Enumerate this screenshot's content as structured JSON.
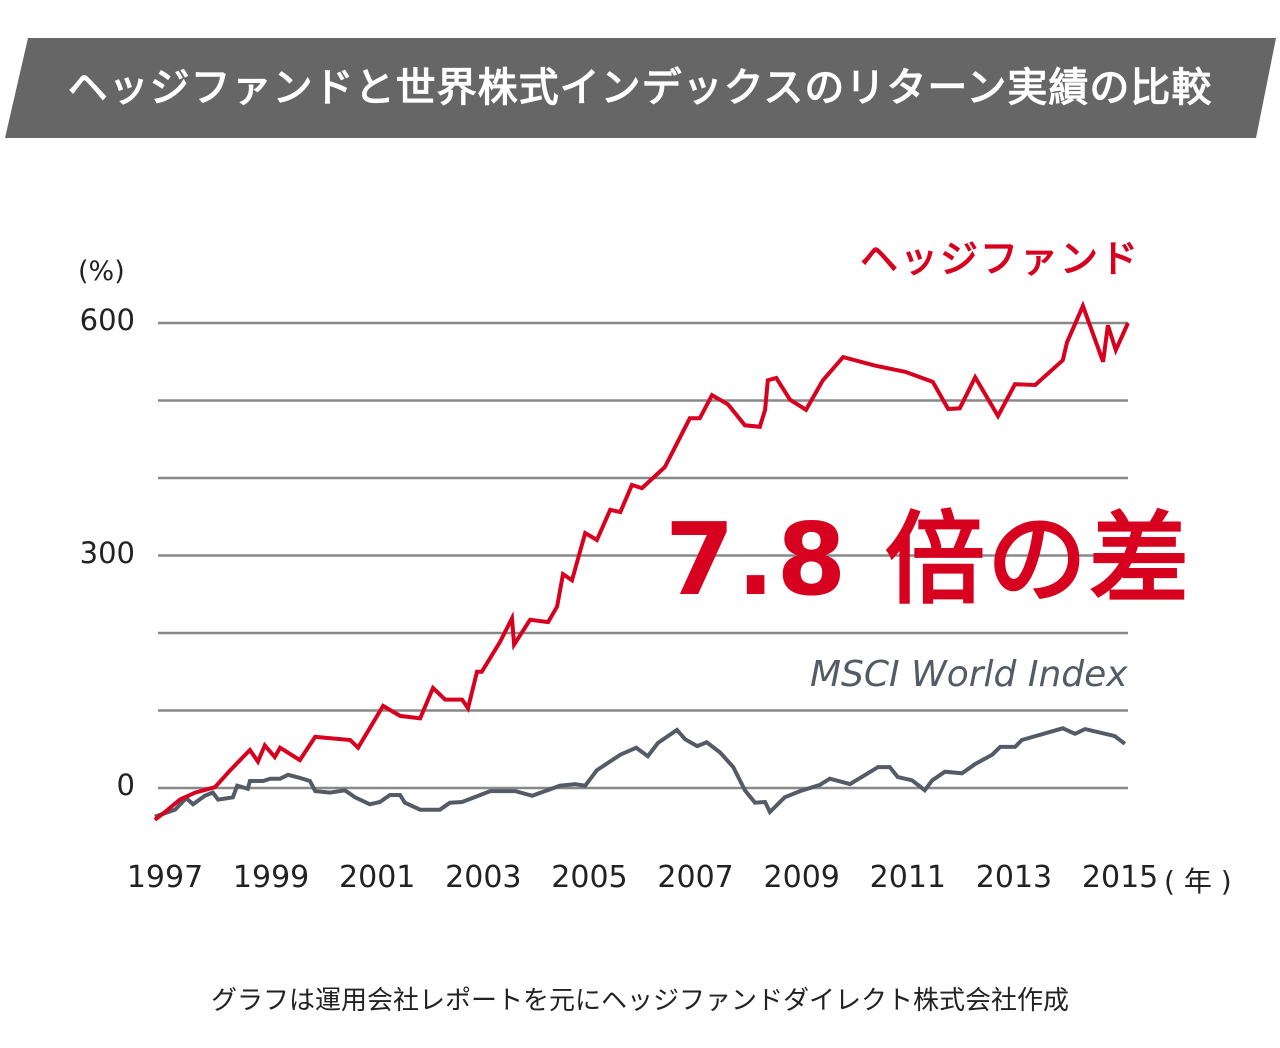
{
  "title": "ヘッジファンドと世界株式インデックスのリターン実績の比較",
  "footnote": "グラフは運用会社レポートを元にヘッジファンドダイレクト株式会社作成",
  "callout": "7.8 倍の差",
  "chart_data": {
    "type": "line",
    "ylabel": "(%)",
    "xunit": "( 年 )",
    "ylim": [
      -50,
      620
    ],
    "xlim": [
      1996.8,
      2015.2
    ],
    "y_gridlines": [
      0,
      100,
      200,
      300,
      400,
      500,
      600
    ],
    "y_ticks": [
      "0",
      "300",
      "600"
    ],
    "y_tick_values": [
      0,
      300,
      600
    ],
    "x_ticks": [
      "1997",
      "1999",
      "2001",
      "2003",
      "2005",
      "2007",
      "2009",
      "2011",
      "2013",
      "2015"
    ],
    "x_tick_values": [
      1997,
      1999,
      2001,
      2003,
      2005,
      2007,
      2009,
      2011,
      2013,
      2015
    ],
    "grid": true,
    "colors": {
      "hedge": "#d7001e",
      "msci": "#555b66",
      "grid": "#888888",
      "banner": "#666666"
    },
    "series": [
      {
        "name": "ヘッジファンド",
        "color": "#d7001e",
        "points": [
          [
            1996.81,
            -41
          ],
          [
            1997.0,
            -31
          ],
          [
            1997.28,
            -15
          ],
          [
            1997.57,
            -6
          ],
          [
            1997.94,
            1
          ],
          [
            1998.23,
            23
          ],
          [
            1998.6,
            49
          ],
          [
            1998.75,
            34
          ],
          [
            1998.88,
            55
          ],
          [
            1999.07,
            40
          ],
          [
            1999.17,
            52
          ],
          [
            1999.54,
            36
          ],
          [
            1999.83,
            66
          ],
          [
            2000.49,
            62
          ],
          [
            2000.64,
            52
          ],
          [
            2001.11,
            106
          ],
          [
            2001.43,
            93
          ],
          [
            2001.81,
            90
          ],
          [
            2002.05,
            129
          ],
          [
            2002.28,
            114
          ],
          [
            2002.6,
            114
          ],
          [
            2002.71,
            103
          ],
          [
            2002.88,
            150
          ],
          [
            2002.97,
            150
          ],
          [
            2003.31,
            188
          ],
          [
            2003.54,
            219
          ],
          [
            2003.58,
            185
          ],
          [
            2003.88,
            217
          ],
          [
            2004.22,
            214
          ],
          [
            2004.39,
            234
          ],
          [
            2004.5,
            276
          ],
          [
            2004.67,
            268
          ],
          [
            2004.92,
            329
          ],
          [
            2005.14,
            320
          ],
          [
            2005.39,
            359
          ],
          [
            2005.58,
            356
          ],
          [
            2005.8,
            391
          ],
          [
            2005.99,
            387
          ],
          [
            2006.42,
            414
          ],
          [
            2006.89,
            477
          ],
          [
            2007.08,
            477
          ],
          [
            2007.31,
            507
          ],
          [
            2007.61,
            495
          ],
          [
            2007.93,
            468
          ],
          [
            2008.21,
            466
          ],
          [
            2008.31,
            488
          ],
          [
            2008.36,
            526
          ],
          [
            2008.52,
            529
          ],
          [
            2008.78,
            501
          ],
          [
            2009.08,
            488
          ],
          [
            2009.4,
            526
          ],
          [
            2009.78,
            556
          ],
          [
            2010.38,
            545
          ],
          [
            2010.95,
            537
          ],
          [
            2011.47,
            524
          ],
          [
            2011.76,
            489
          ],
          [
            2011.98,
            490
          ],
          [
            2012.27,
            530
          ],
          [
            2012.7,
            480
          ],
          [
            2013.02,
            521
          ],
          [
            2013.4,
            520
          ],
          [
            2013.92,
            552
          ],
          [
            2014.0,
            575
          ],
          [
            2014.3,
            622
          ],
          [
            2014.68,
            550
          ],
          [
            2014.77,
            597
          ],
          [
            2014.92,
            565
          ],
          [
            2015.15,
            600
          ]
        ]
      },
      {
        "name": "MSCI World Index",
        "color": "#555b66",
        "points": [
          [
            1996.81,
            -37
          ],
          [
            1997.19,
            -28
          ],
          [
            1997.4,
            -13
          ],
          [
            1997.53,
            -21
          ],
          [
            1997.75,
            -10
          ],
          [
            1997.9,
            -6
          ],
          [
            1998.0,
            -15
          ],
          [
            1998.28,
            -12
          ],
          [
            1998.36,
            3
          ],
          [
            1998.56,
            -1
          ],
          [
            1998.6,
            9
          ],
          [
            1998.85,
            9
          ],
          [
            1998.98,
            12
          ],
          [
            1999.17,
            12
          ],
          [
            1999.32,
            17
          ],
          [
            1999.54,
            13
          ],
          [
            1999.73,
            9
          ],
          [
            1999.83,
            -4
          ],
          [
            2000.11,
            -6
          ],
          [
            2000.39,
            -3
          ],
          [
            2000.58,
            -12
          ],
          [
            2000.86,
            -21
          ],
          [
            2001.05,
            -18
          ],
          [
            2001.24,
            -9
          ],
          [
            2001.43,
            -9
          ],
          [
            2001.52,
            -19
          ],
          [
            2001.81,
            -28
          ],
          [
            2002.18,
            -28
          ],
          [
            2002.37,
            -19
          ],
          [
            2002.6,
            -18
          ],
          [
            2003.13,
            -4
          ],
          [
            2003.6,
            -4
          ],
          [
            2003.92,
            -10
          ],
          [
            2004.44,
            3
          ],
          [
            2004.73,
            5
          ],
          [
            2004.92,
            3
          ],
          [
            2005.14,
            23
          ],
          [
            2005.58,
            43
          ],
          [
            2005.88,
            52
          ],
          [
            2006.1,
            41
          ],
          [
            2006.29,
            58
          ],
          [
            2006.65,
            75
          ],
          [
            2006.8,
            63
          ],
          [
            2007.03,
            54
          ],
          [
            2007.21,
            59
          ],
          [
            2007.46,
            46
          ],
          [
            2007.71,
            27
          ],
          [
            2007.93,
            -3
          ],
          [
            2008.12,
            -19
          ],
          [
            2008.31,
            -18
          ],
          [
            2008.4,
            -31
          ],
          [
            2008.68,
            -12
          ],
          [
            2008.97,
            -4
          ],
          [
            2009.34,
            4
          ],
          [
            2009.53,
            12
          ],
          [
            2009.91,
            5
          ],
          [
            2010.44,
            27
          ],
          [
            2010.66,
            27
          ],
          [
            2010.81,
            14
          ],
          [
            2011.08,
            10
          ],
          [
            2011.32,
            -3
          ],
          [
            2011.46,
            10
          ],
          [
            2011.7,
            21
          ],
          [
            2012.02,
            19
          ],
          [
            2012.27,
            31
          ],
          [
            2012.59,
            43
          ],
          [
            2012.74,
            53
          ],
          [
            2013.02,
            53
          ],
          [
            2013.15,
            62
          ],
          [
            2013.92,
            77
          ],
          [
            2014.15,
            70
          ],
          [
            2014.34,
            76
          ],
          [
            2014.9,
            67
          ],
          [
            2015.09,
            57
          ]
        ]
      }
    ]
  }
}
